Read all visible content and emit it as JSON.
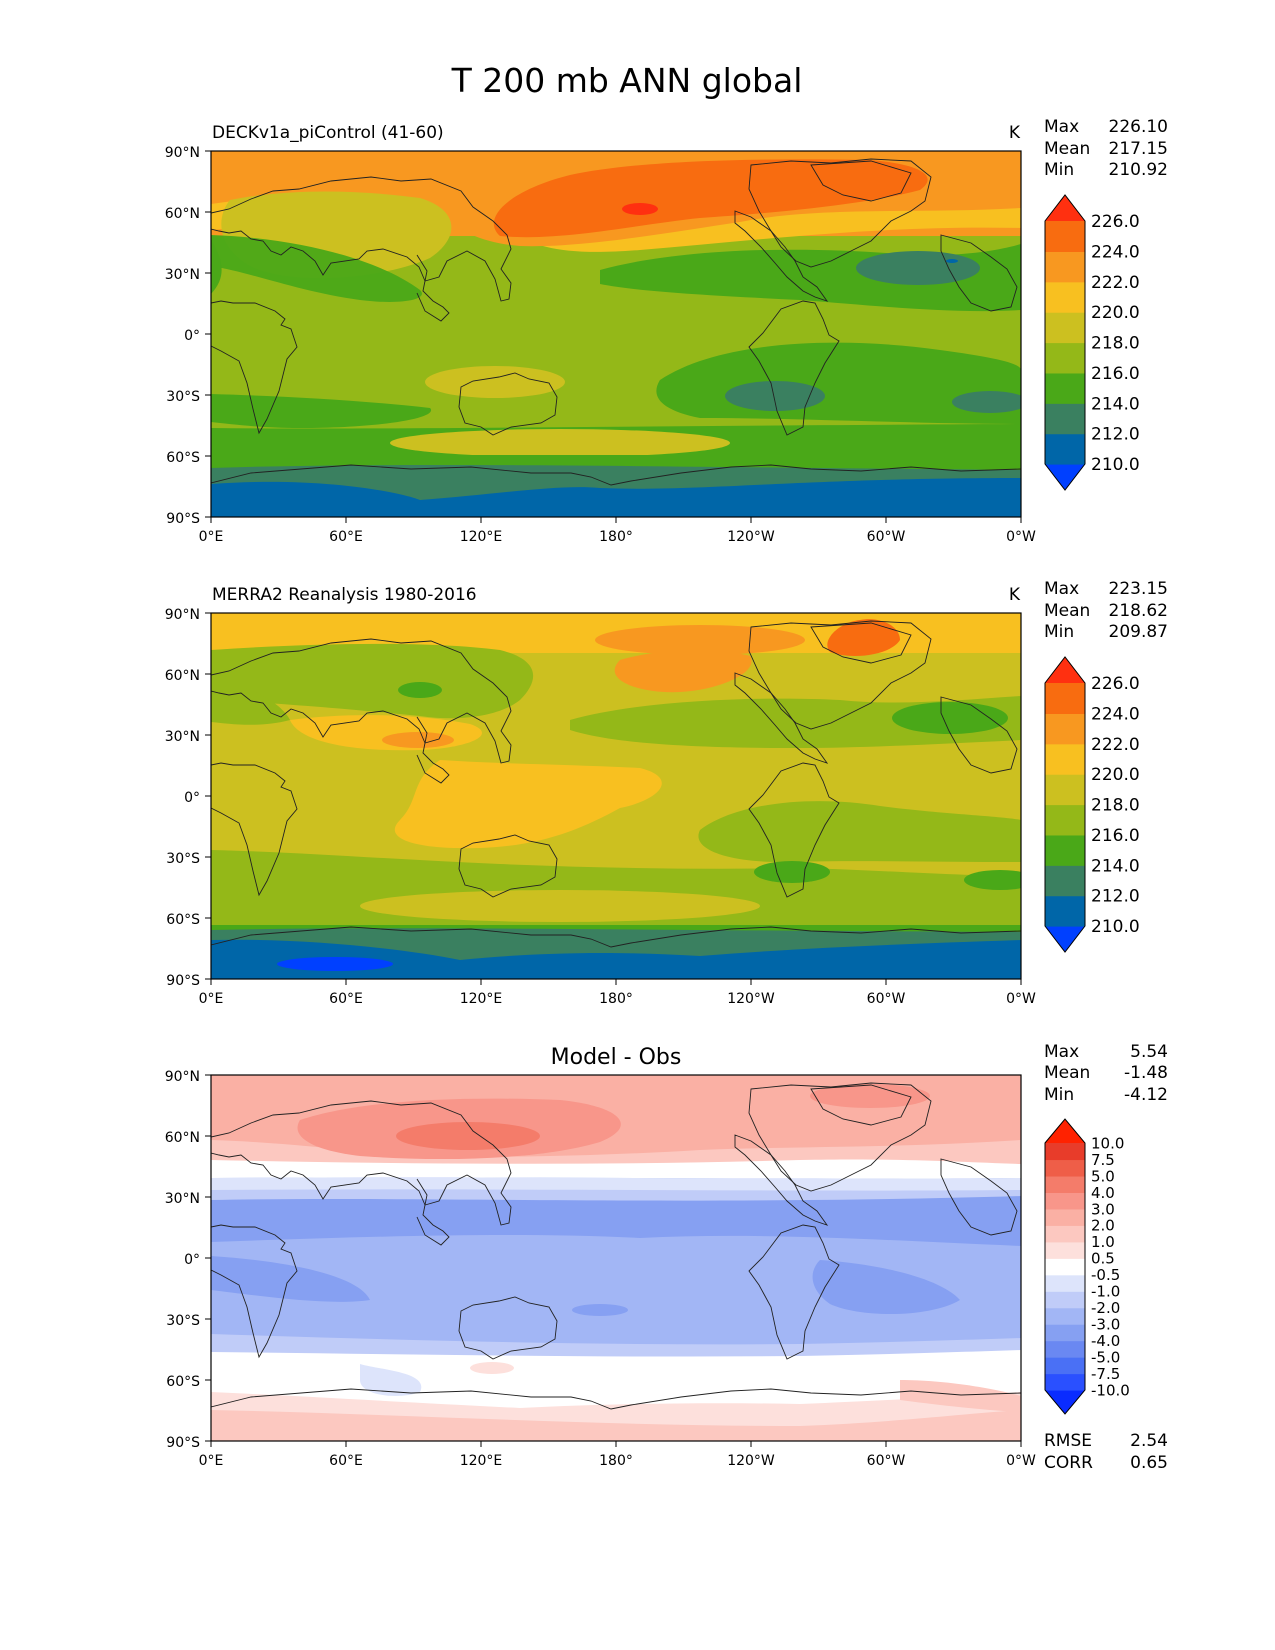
{
  "figure": {
    "title": "T 200 mb ANN global"
  },
  "axes": {
    "lat_ticks": [
      "90°N",
      "60°N",
      "30°N",
      "0°",
      "30°S",
      "60°S",
      "90°S"
    ],
    "lon_ticks": [
      "0°E",
      "60°E",
      "120°E",
      "180°",
      "120°W",
      "60°W",
      "0°W"
    ]
  },
  "chart_data": [
    {
      "type": "heatmap",
      "title": "DECKv1a_piControl (41-60)",
      "units": "K",
      "stats": {
        "max": "226.10",
        "mean": "217.15",
        "min": "210.92"
      },
      "stat_labels": {
        "max": "Max",
        "mean": "Mean",
        "min": "Min"
      },
      "xlim": [
        0,
        360
      ],
      "ylim": [
        -90,
        90
      ],
      "colorbar": {
        "extend": "both",
        "levels": [
          "210.0",
          "212.0",
          "214.0",
          "216.0",
          "218.0",
          "220.0",
          "222.0",
          "224.0",
          "226.0"
        ],
        "colors": [
          "#0040ff",
          "#0066a8",
          "#3a8060",
          "#4aa818",
          "#94b818",
          "#ccc020",
          "#f8c020",
          "#f89820",
          "#f86c10",
          "#ff3010"
        ]
      }
    },
    {
      "type": "heatmap",
      "title": "MERRA2 Reanalysis 1980-2016",
      "units": "K",
      "stats": {
        "max": "223.15",
        "mean": "218.62",
        "min": "209.87"
      },
      "stat_labels": {
        "max": "Max",
        "mean": "Mean",
        "min": "Min"
      },
      "xlim": [
        0,
        360
      ],
      "ylim": [
        -90,
        90
      ],
      "colorbar": {
        "extend": "both",
        "levels": [
          "210.0",
          "212.0",
          "214.0",
          "216.0",
          "218.0",
          "220.0",
          "222.0",
          "224.0",
          "226.0"
        ],
        "colors": [
          "#0040ff",
          "#0066a8",
          "#3a8060",
          "#4aa818",
          "#94b818",
          "#ccc020",
          "#f8c020",
          "#f89820",
          "#f86c10",
          "#ff3010"
        ]
      }
    },
    {
      "type": "heatmap",
      "title": "Model - Obs",
      "stats": {
        "max": "5.54",
        "mean": "-1.48",
        "min": "-4.12"
      },
      "stat_labels": {
        "max": "Max",
        "mean": "Mean",
        "min": "Min"
      },
      "metrics": {
        "rmse_label": "RMSE",
        "rmse": "2.54",
        "corr_label": "CORR",
        "corr": "0.65"
      },
      "xlim": [
        0,
        360
      ],
      "ylim": [
        -90,
        90
      ],
      "colorbar": {
        "extend": "both",
        "levels": [
          "-10.0",
          "-7.5",
          "-5.0",
          "-4.0",
          "-3.0",
          "-2.0",
          "-1.0",
          "-0.5",
          "0.5",
          "1.0",
          "2.0",
          "3.0",
          "4.0",
          "5.0",
          "7.5",
          "10.0"
        ],
        "colors": [
          "#0a2cff",
          "#2a50ff",
          "#4a70f5",
          "#6a88f2",
          "#86a0f2",
          "#a2b6f5",
          "#c0ccf8",
          "#dde4fb",
          "#ffffff",
          "#fde0dc",
          "#fcc8c0",
          "#fab0a4",
          "#f8968a",
          "#f47c6a",
          "#ef5e48",
          "#e83c2a",
          "#ff2200"
        ]
      }
    }
  ]
}
